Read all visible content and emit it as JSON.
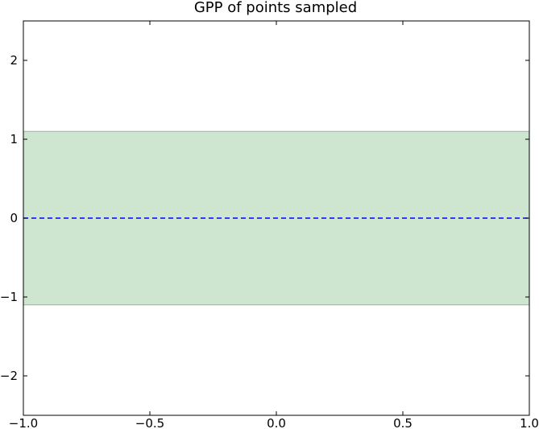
{
  "chart_data": {
    "type": "area",
    "title": "GPP of points sampled",
    "xlabel": "",
    "ylabel": "",
    "xlim": [
      -1.0,
      1.0
    ],
    "ylim": [
      -2.5,
      2.5
    ],
    "xticks": [
      -1.0,
      -0.5,
      0.0,
      0.5,
      1.0
    ],
    "xtick_labels": [
      "−1.0",
      "−0.5",
      "0.0",
      "0.5",
      "1.0"
    ],
    "yticks": [
      -2,
      -1,
      0,
      1,
      2
    ],
    "ytick_labels": [
      "−2",
      "−1",
      "0",
      "1",
      "2"
    ],
    "grid": false,
    "series": [
      {
        "kind": "band",
        "x": [
          -1.0,
          1.0
        ],
        "lower": [
          -1.1,
          -1.1
        ],
        "upper": [
          1.1,
          1.1
        ],
        "color": "#cee5cf",
        "edge_color": "#9fb09f"
      },
      {
        "kind": "line",
        "x": [
          -1.0,
          1.0
        ],
        "y": [
          0.0,
          0.0
        ],
        "color": "#0000ff",
        "linestyle": "dashed"
      }
    ]
  }
}
